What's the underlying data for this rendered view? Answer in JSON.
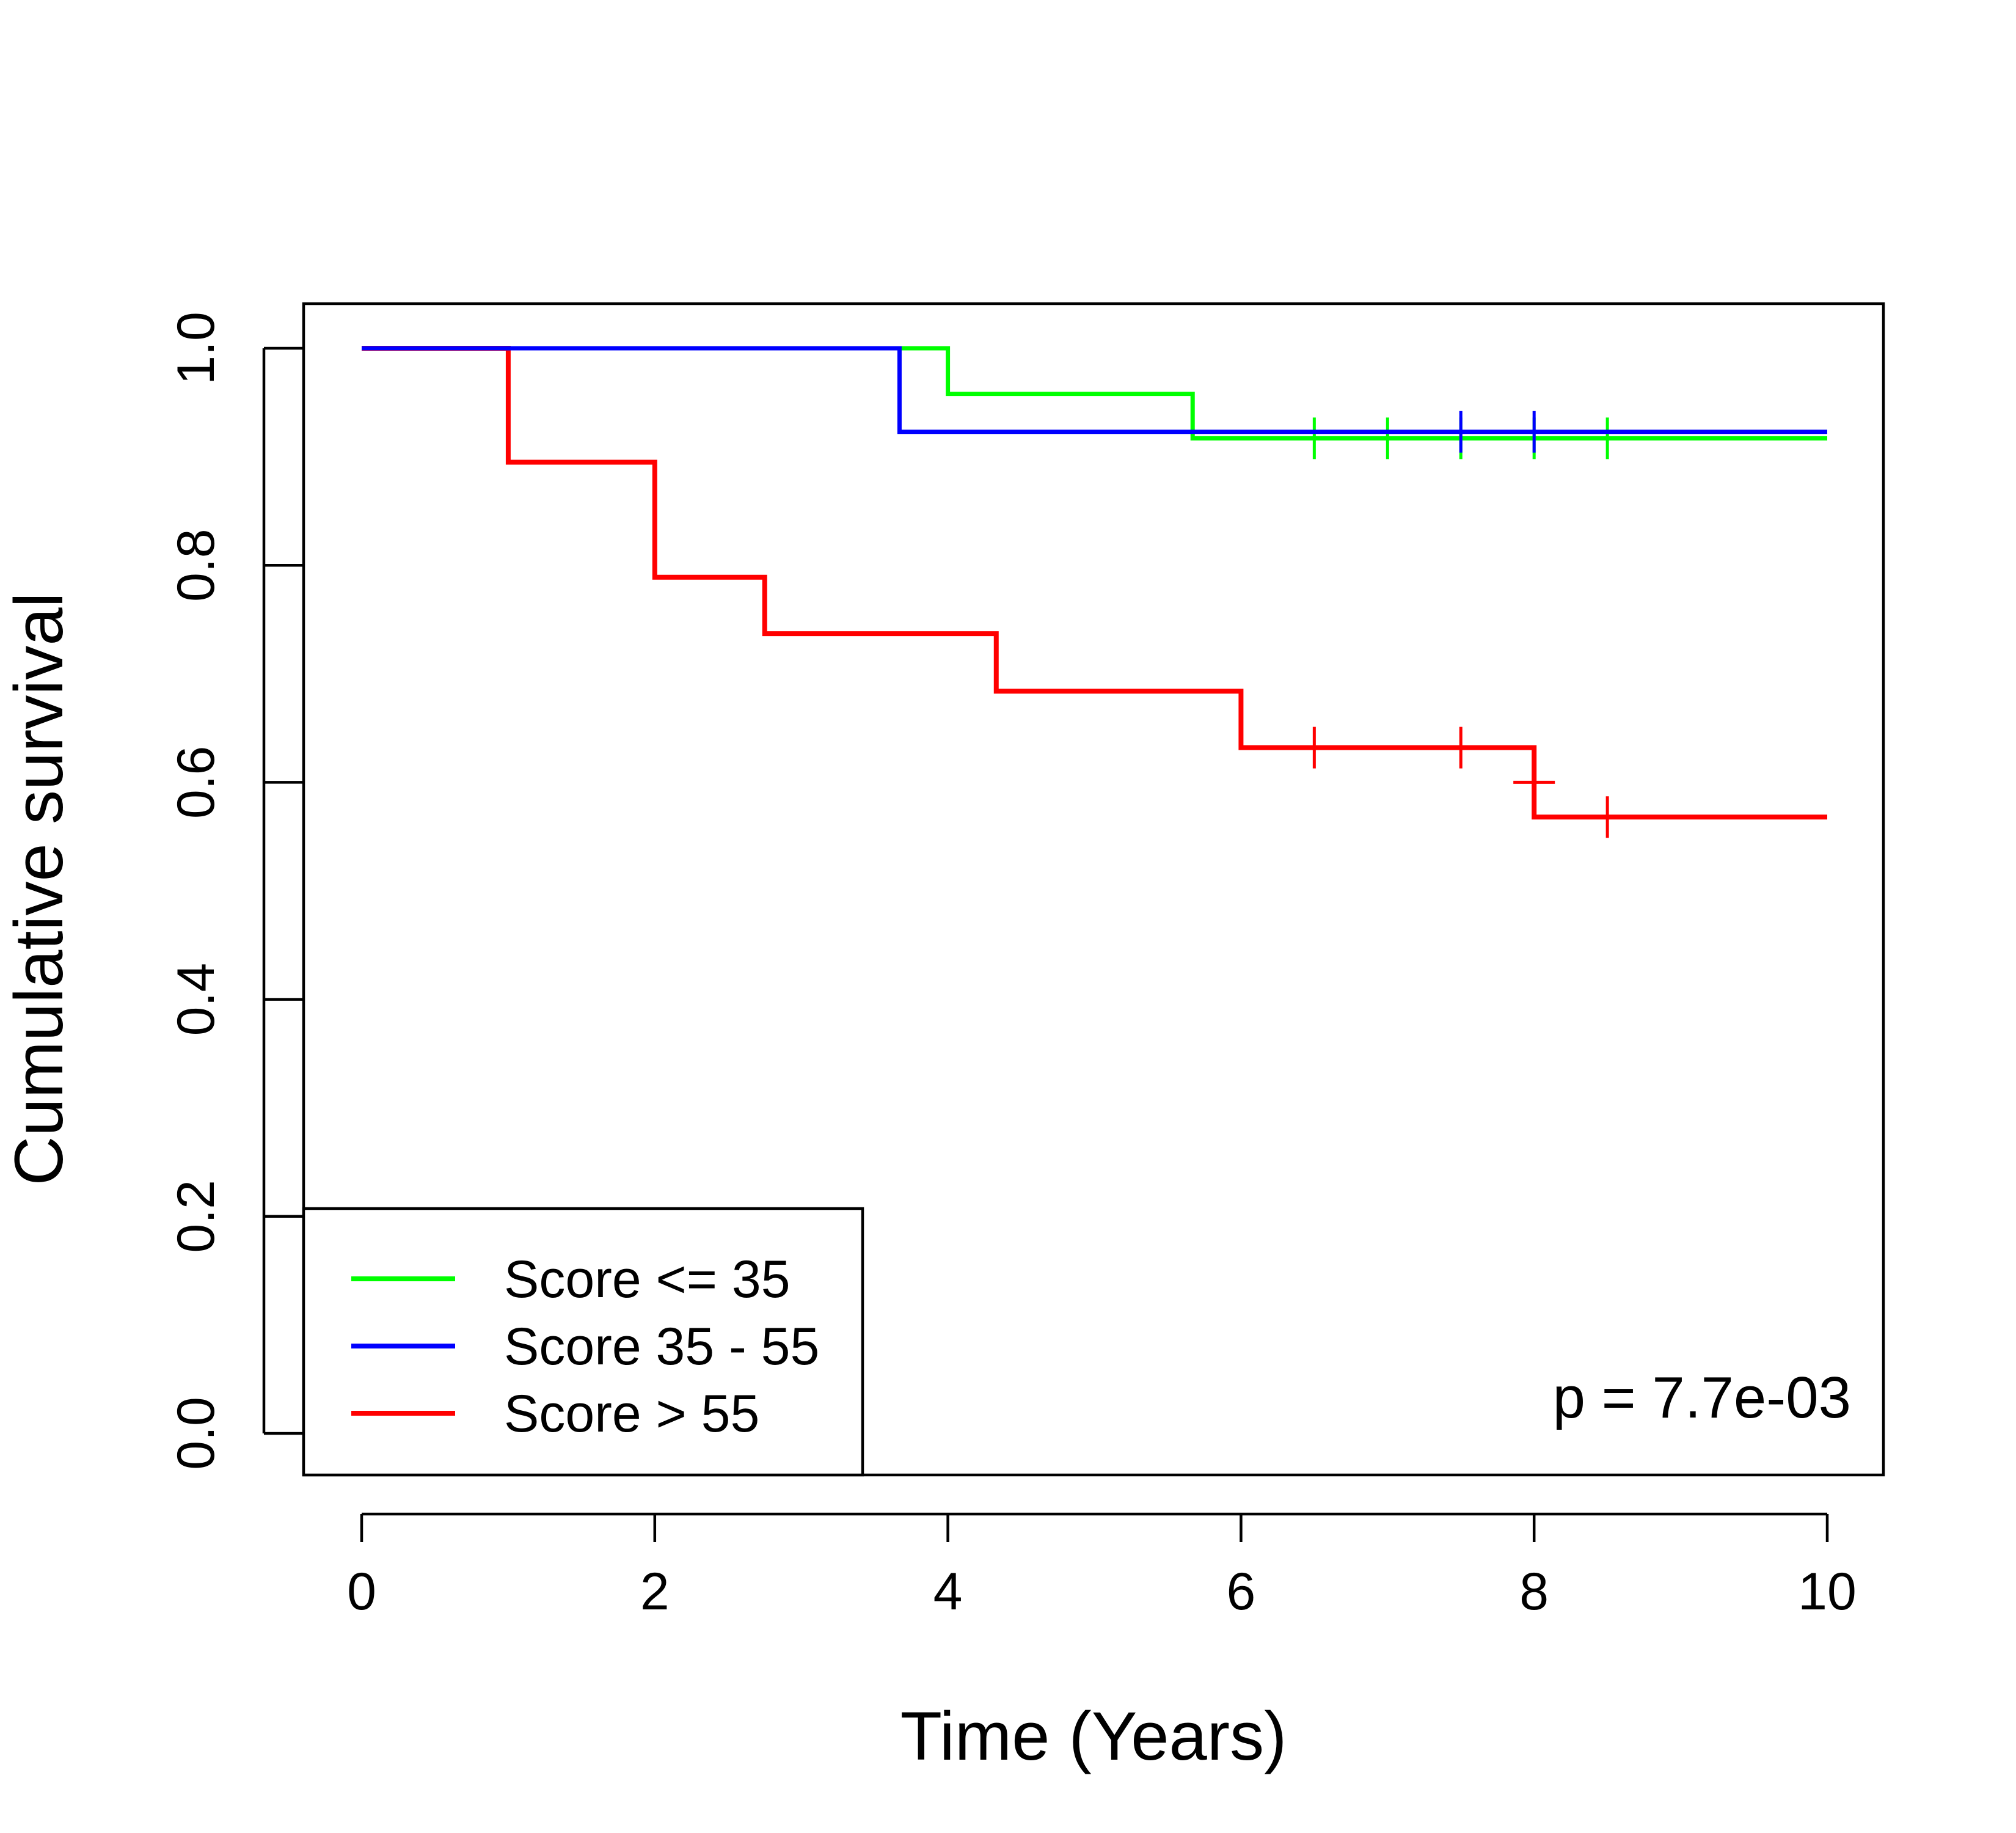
{
  "chart_data": {
    "type": "line",
    "title": "",
    "xlabel": "Time (Years)",
    "ylabel": "Cumulative survival",
    "xlim": [
      0,
      10
    ],
    "ylim": [
      0,
      1
    ],
    "xticks": [
      "0",
      "2",
      "4",
      "6",
      "8",
      "10"
    ],
    "yticks": [
      "0.0",
      "0.2",
      "0.4",
      "0.6",
      "0.8",
      "1.0"
    ],
    "xtick_values": [
      0,
      2,
      4,
      6,
      8,
      10
    ],
    "ytick_values": [
      0,
      0.2,
      0.4,
      0.6,
      0.8,
      1.0
    ],
    "grid": false,
    "legend": "bottom-left",
    "annotation": "p = 7.7e-03",
    "series": [
      {
        "name": "Score <= 35",
        "color": "#00ff00",
        "step_x": [
          0,
          4.0,
          5.67,
          10
        ],
        "step_y": [
          1.0,
          0.958,
          0.917,
          0.917
        ],
        "censor_x": [
          6.5,
          7.0,
          7.5,
          8.0,
          8.5
        ]
      },
      {
        "name": "Score 35 - 55",
        "color": "#0000ff",
        "step_x": [
          0,
          3.67,
          10
        ],
        "step_y": [
          1.0,
          0.923,
          0.923
        ],
        "censor_x": [
          7.5,
          8.0
        ]
      },
      {
        "name": "Score > 55",
        "color": "#ff0000",
        "step_x": [
          0,
          1.0,
          2.0,
          2.75,
          4.33,
          6.0,
          8.0,
          10
        ],
        "step_y": [
          1.0,
          0.895,
          0.789,
          0.737,
          0.684,
          0.632,
          0.568,
          0.568
        ],
        "censor_x": [
          6.5,
          7.5,
          8.5
        ],
        "censor_y": [
          0.632,
          0.632,
          0.568
        ],
        "extra_censor": {
          "x": 8.0,
          "y": 0.6
        }
      }
    ]
  }
}
